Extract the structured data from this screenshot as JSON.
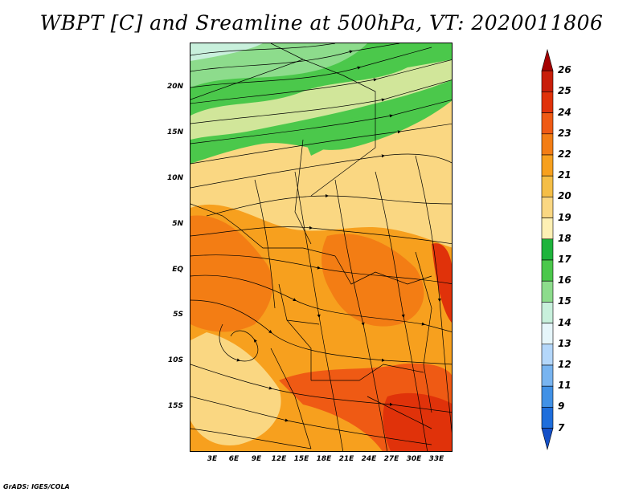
{
  "title": "WBPT [C] and Sreamline at 500hPa, VT: 2020011806",
  "footer": "GrADS: IGES/COLA",
  "y_axis_labels": [
    "20N",
    "15N",
    "10N",
    "5N",
    "EQ",
    "5S",
    "10S",
    "15S"
  ],
  "x_axis_labels": [
    "3E",
    "6E",
    "9E",
    "12E",
    "15E",
    "18E",
    "21E",
    "24E",
    "27E",
    "30E",
    "33E"
  ],
  "colorbar": {
    "labels": [
      "26",
      "25",
      "24",
      "23",
      "22",
      "21",
      "20",
      "19",
      "18",
      "17",
      "16",
      "15",
      "14",
      "13",
      "12",
      "11",
      "9",
      "7"
    ],
    "colors": [
      "#a50000",
      "#c81e0a",
      "#e0320a",
      "#ef5a14",
      "#f37d14",
      "#f7a01e",
      "#f5be46",
      "#fad782",
      "#fef0b4",
      "#1eb43c",
      "#4bc84b",
      "#8ddc8c",
      "#c8f0dc",
      "#e6f6fa",
      "#b4d7fa",
      "#78b4f0",
      "#4191e6",
      "#1e6edc",
      "#1450c8"
    ]
  },
  "colors": {
    "map_background": "#fad782",
    "green_band": "#4bc84b",
    "orange_region": "#f37d14",
    "red_region": "#e0320a",
    "streamline": "#000000"
  }
}
